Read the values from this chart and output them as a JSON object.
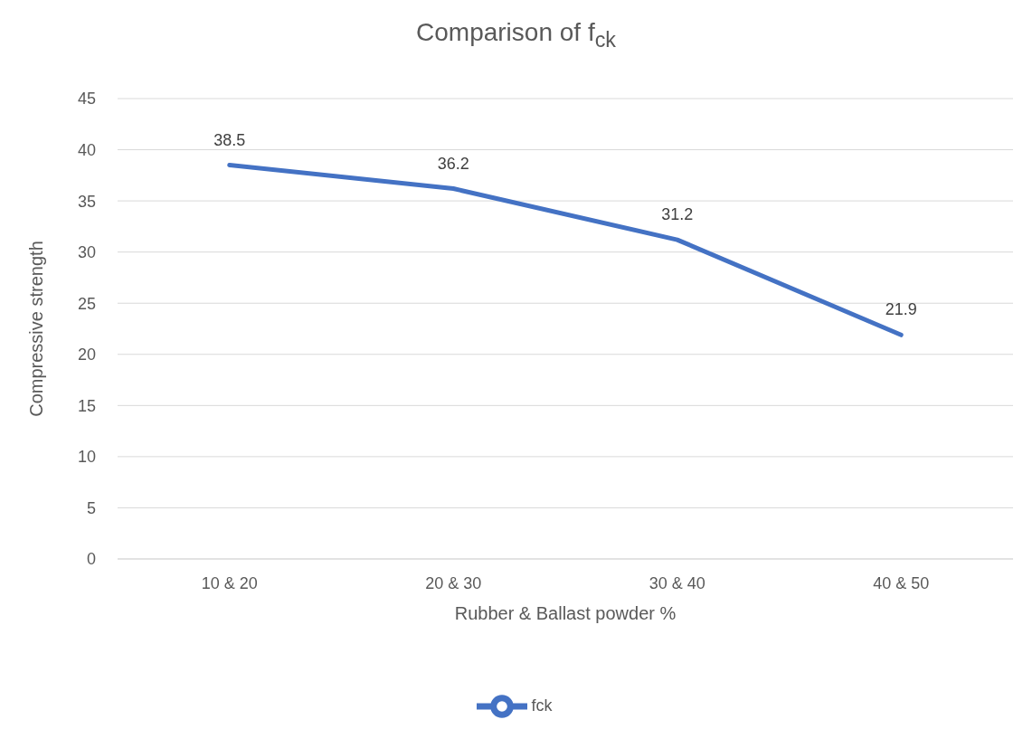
{
  "chart_data": {
    "type": "line",
    "title": "Comparison of f$_{ck}$",
    "xlabel": "Rubber & Ballast powder %",
    "ylabel": "Compressive strength",
    "categories": [
      "10 & 20",
      "20 & 30",
      "30 & 40",
      "40 & 50"
    ],
    "series": [
      {
        "name": "fck",
        "color": "#4472c4",
        "values": [
          38.5,
          36.2,
          31.2,
          21.9
        ]
      }
    ],
    "ylim": [
      0,
      45
    ],
    "yticks": [
      0,
      5,
      10,
      15,
      20,
      25,
      30,
      35,
      40,
      45
    ],
    "grid": "y",
    "legend": "bottom",
    "marker": "none",
    "line_style": "solid",
    "data_labels": true
  }
}
